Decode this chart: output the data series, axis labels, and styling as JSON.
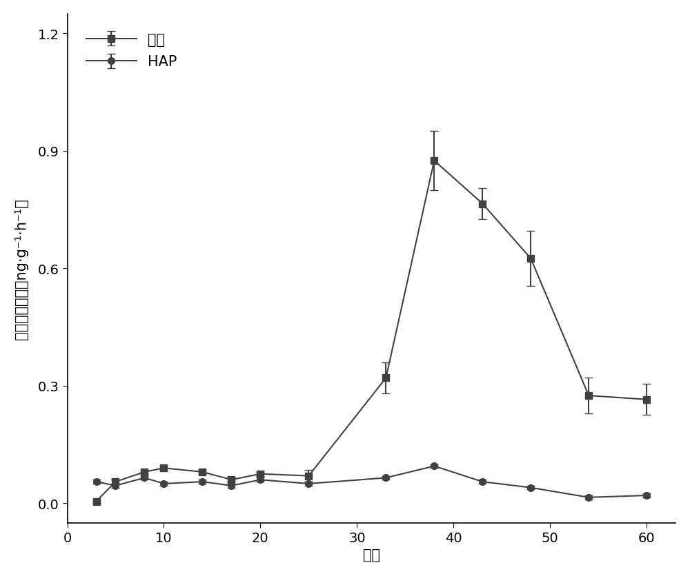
{
  "control_x": [
    3,
    5,
    8,
    10,
    14,
    17,
    20,
    25,
    33,
    38,
    43,
    48,
    54,
    60
  ],
  "control_y": [
    0.005,
    0.055,
    0.08,
    0.09,
    0.08,
    0.06,
    0.075,
    0.07,
    0.32,
    0.875,
    0.765,
    0.625,
    0.275,
    0.265
  ],
  "control_yerr": [
    0.005,
    0.005,
    0.005,
    0.005,
    0.005,
    0.005,
    0.005,
    0.015,
    0.04,
    0.075,
    0.04,
    0.07,
    0.045,
    0.04
  ],
  "hap_x": [
    3,
    5,
    8,
    10,
    14,
    17,
    20,
    25,
    33,
    38,
    43,
    48,
    54,
    60
  ],
  "hap_y": [
    0.055,
    0.045,
    0.065,
    0.05,
    0.055,
    0.045,
    0.06,
    0.05,
    0.065,
    0.095,
    0.055,
    0.04,
    0.015,
    0.02
  ],
  "hap_yerr": [
    0.005,
    0.005,
    0.005,
    0.005,
    0.005,
    0.005,
    0.005,
    0.005,
    0.005,
    0.005,
    0.005,
    0.005,
    0.005,
    0.005
  ],
  "xlabel": "天数",
  "ylabel_line1": "氧化亚氮速率",
  "ylabel_line2": "ng·g⁻¹·h⁻¹",
  "legend_control": "对照",
  "legend_hap": "HAP",
  "xlim": [
    0,
    63
  ],
  "ylim": [
    -0.05,
    1.25
  ],
  "yticks": [
    0.0,
    0.3,
    0.6,
    0.9,
    1.2
  ],
  "xticks": [
    0,
    10,
    20,
    30,
    40,
    50,
    60
  ],
  "line_color": "#404040",
  "background_color": "#ffffff",
  "label_fontsize": 15,
  "tick_fontsize": 14,
  "legend_fontsize": 15,
  "marker_size": 7,
  "line_width": 1.5
}
